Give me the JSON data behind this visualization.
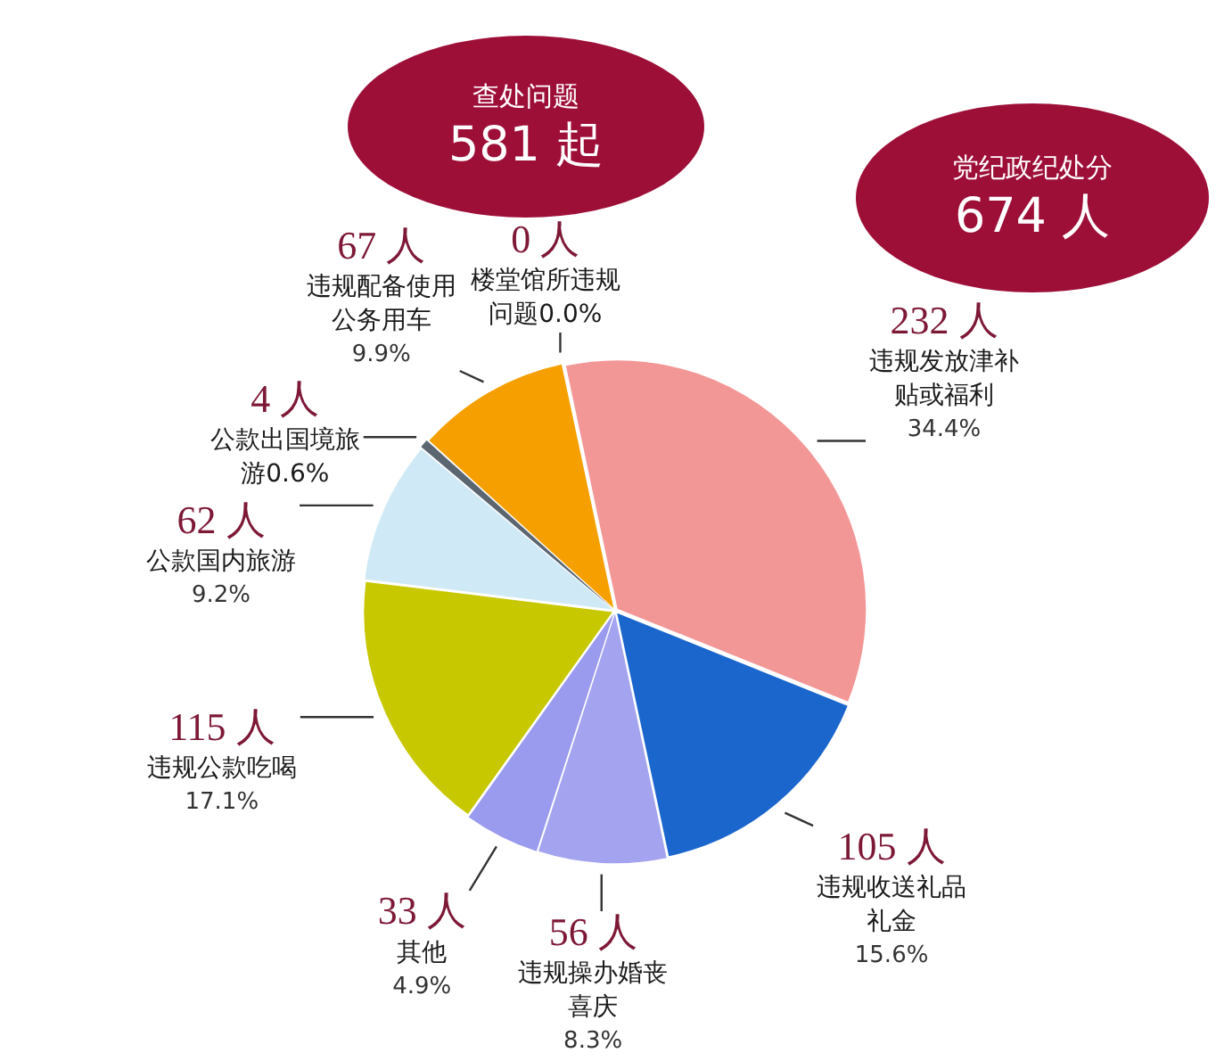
{
  "chart_data": {
    "type": "pie",
    "categories": [
      "楼堂馆所违规问题0.0%",
      "违规发放津补贴或福利 34.4%",
      "违规收送礼品礼金 15.6%",
      "违规操办婚丧喜庆 8.3%",
      "其他 4.9%",
      "违规公款吃喝 17.1%",
      "公款国内旅游 9.2%",
      "公款出国境旅游0.6%",
      "违规配备使用公务用车 9.9%"
    ],
    "values": [
      0,
      232,
      105,
      56,
      33,
      115,
      62,
      4,
      67
    ],
    "value_labels": [
      "0 人",
      "232 人",
      "105 人",
      "56 人",
      "33 人",
      "115 人",
      "62 人",
      "4 人",
      "67 人"
    ],
    "colors": [
      "#c0c0c0",
      "#f39696",
      "#1a66cc",
      "#a3a3f0",
      "#9a9aee",
      "#c8c800",
      "#cfe9f7",
      "#5b6670",
      "#f5a000"
    ],
    "legend": false,
    "annotations": [
      "查处问题 581 起",
      "党纪政纪处分 674 人"
    ]
  }
}
